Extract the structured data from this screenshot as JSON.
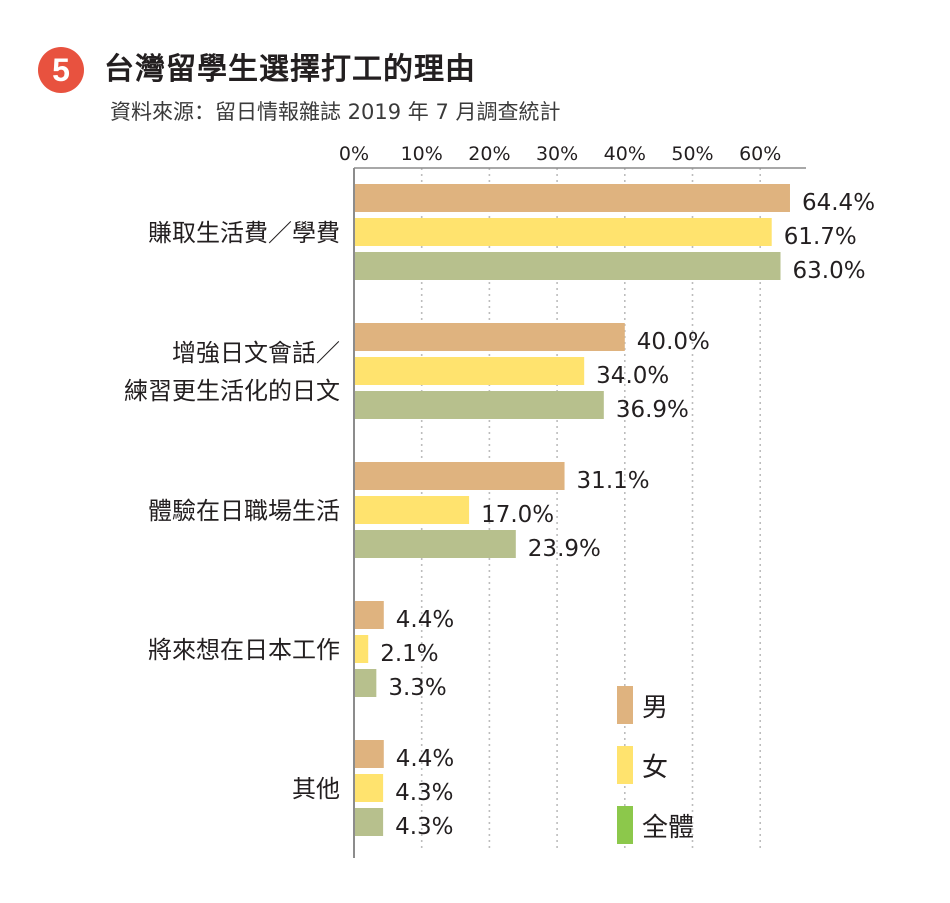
{
  "badge": "5",
  "title": "台灣留學生選擇打工的理由",
  "subtitle": "資料來源：留日情報雜誌 2019 年 7 月調查統計",
  "chart_data": {
    "type": "bar",
    "orientation": "horizontal",
    "xticks": [
      "0%",
      "10%",
      "20%",
      "30%",
      "40%",
      "50%",
      "60%"
    ],
    "xlim": [
      0,
      65
    ],
    "grid": true,
    "legend_position": "bottom-right",
    "categories": [
      {
        "lines": [
          "賺取生活費／學費"
        ]
      },
      {
        "lines": [
          "增強日文會話／",
          "練習更生活化的日文"
        ]
      },
      {
        "lines": [
          "體驗在日職場生活"
        ]
      },
      {
        "lines": [
          "將來想在日本工作"
        ]
      },
      {
        "lines": [
          "其他"
        ]
      }
    ],
    "series": [
      {
        "name": "男",
        "color": "#dfb37f",
        "legend_color": "#dfb37f",
        "values": [
          64.4,
          40.0,
          31.1,
          4.4,
          4.4
        ],
        "labels": [
          "64.4%",
          "40.0%",
          "31.1%",
          "4.4%",
          "4.4%"
        ]
      },
      {
        "name": "女",
        "color": "#ffe36e",
        "legend_color": "#ffe36e",
        "values": [
          61.7,
          34.0,
          17.0,
          2.1,
          4.3
        ],
        "labels": [
          "61.7%",
          "34.0%",
          "17.0%",
          "2.1%",
          "4.3%"
        ]
      },
      {
        "name": "全體",
        "color": "#b7c08d",
        "legend_color": "#8cc84b",
        "values": [
          63.0,
          36.9,
          23.9,
          3.3,
          4.3
        ],
        "labels": [
          "63.0%",
          "36.9%",
          "23.9%",
          "3.3%",
          "4.3%"
        ]
      }
    ]
  }
}
